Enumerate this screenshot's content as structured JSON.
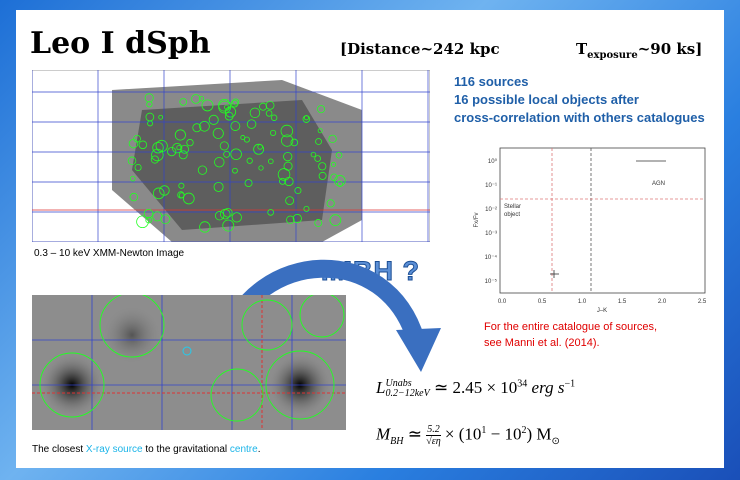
{
  "title": "Leo I dSph",
  "distance": "[Distance~242 kpc",
  "exposure": {
    "symbol": "T",
    "subscript": "exposure",
    "rest": "~90 ks]"
  },
  "summary": [
    "116 sources",
    "16 possible local objects after",
    "cross-correlation with others catalogues"
  ],
  "xmm_caption": "0.3 – 10 keV XMM-Newton Image",
  "imbh_label": "IMBH ?",
  "plot": {
    "yticks": [
      "10⁰",
      "10⁻¹",
      "10⁻²",
      "10⁻³",
      "10⁻⁴",
      "10⁻⁵"
    ],
    "xticks": [
      "0.0",
      "0.5",
      "1.0",
      "1.5",
      "2.0",
      "2.5"
    ],
    "xlabel": "J–K",
    "ylabel": "Fx/Fv",
    "stellar_label": [
      "Stellar",
      "object"
    ],
    "agn_label": "AGN"
  },
  "reference": [
    "For the entire catalogue of sources,",
    "see Manni et al. (2014)."
  ],
  "luminosity": {
    "symbol": "L",
    "sup": "Unabs",
    "sub": "0.2−12keV",
    "relation": " ≃ 2.45 × 10",
    "exponent": "34",
    "unit": " erg s",
    "unit_exponent": "−1"
  },
  "mass": {
    "symbol": "M",
    "sub": "BH",
    "relation": " ≃ ",
    "numerator": "5.2",
    "denominator": "√εη",
    "factor": " × (10",
    "exp1": "1",
    "minus": " − 10",
    "exp2": "2",
    "close": ") M",
    "sun": "⊙"
  },
  "closest_caption": [
    "The closest ",
    "X-ray source",
    " to the gravitational ",
    "centre",
    "."
  ]
}
